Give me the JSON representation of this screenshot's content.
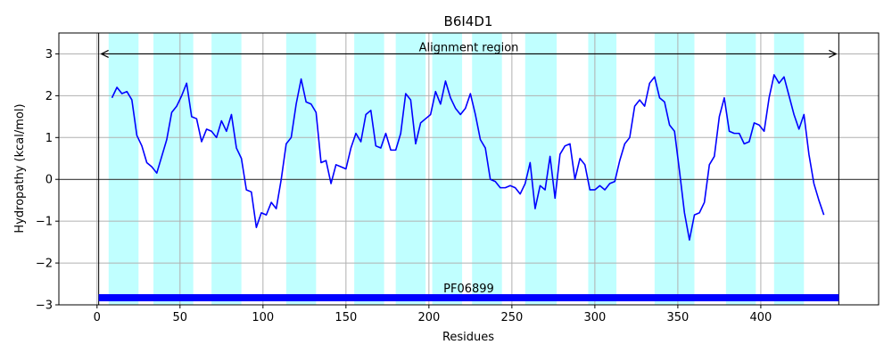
{
  "chart_data": {
    "type": "line",
    "title": "B6I4D1",
    "xlabel": "Residues",
    "ylabel": "Hydropathy (kcal/mol)",
    "xlim": [
      -23,
      471
    ],
    "ylim": [
      -3,
      3.5
    ],
    "xticks": [
      0,
      50,
      100,
      150,
      200,
      250,
      300,
      350,
      400
    ],
    "yticks": [
      -3,
      -2,
      -1,
      0,
      1,
      2,
      3
    ],
    "grid": true,
    "line_color": "#0000ff",
    "band_color": "#c0ffff",
    "domain_color": "#0000ff",
    "alignment_region": {
      "label": "Alignment region",
      "start": 1,
      "end": 447,
      "y": 3
    },
    "domain": {
      "label": "PF06899",
      "start": 1,
      "end": 447
    },
    "hydrophobic_bands": [
      [
        7,
        25
      ],
      [
        34,
        58
      ],
      [
        69,
        87
      ],
      [
        114,
        132
      ],
      [
        155,
        173
      ],
      [
        180,
        198
      ],
      [
        202,
        220
      ],
      [
        226,
        244
      ],
      [
        258,
        277
      ],
      [
        296,
        313
      ],
      [
        336,
        360
      ],
      [
        379,
        397
      ],
      [
        408,
        426
      ]
    ],
    "series": [
      {
        "x": [
          9,
          12,
          15,
          18,
          21,
          24,
          27,
          30,
          33,
          36,
          39,
          42,
          45,
          48,
          51,
          54,
          57,
          60,
          63,
          66,
          69,
          72,
          75,
          78,
          81,
          84,
          87,
          90,
          93,
          96,
          99,
          102,
          105,
          108,
          111,
          114,
          117,
          120,
          123,
          126,
          129,
          132,
          135,
          138,
          141,
          144,
          147,
          150,
          153,
          156,
          159,
          162,
          165,
          168,
          171,
          174,
          177,
          180,
          183,
          186,
          189,
          192,
          195,
          198,
          201,
          204,
          207,
          210,
          213,
          216,
          219,
          222,
          225,
          228,
          231,
          234,
          237,
          240,
          243,
          246,
          249,
          252,
          255,
          258,
          261,
          264,
          267,
          270,
          273,
          276,
          279,
          282,
          285,
          288,
          291,
          294,
          297,
          300,
          303,
          306,
          309,
          312,
          315,
          318,
          321,
          324,
          327,
          330,
          333,
          336,
          339,
          342,
          345,
          348,
          351,
          354,
          357,
          360,
          363,
          366,
          369,
          372,
          375,
          378,
          381,
          384,
          387,
          390,
          393,
          396,
          399,
          402,
          405,
          408,
          411,
          414,
          417,
          420,
          423,
          426,
          429,
          432,
          435,
          438
        ],
        "values": [
          1.95,
          2.2,
          2.05,
          2.1,
          1.9,
          1.05,
          0.8,
          0.4,
          0.3,
          0.15,
          0.55,
          0.95,
          1.6,
          1.75,
          2.0,
          2.3,
          1.5,
          1.45,
          0.9,
          1.2,
          1.15,
          1.0,
          1.4,
          1.15,
          1.55,
          0.75,
          0.5,
          -0.25,
          -0.3,
          -1.15,
          -0.8,
          -0.85,
          -0.55,
          -0.7,
          0.0,
          0.85,
          1.0,
          1.8,
          2.4,
          1.85,
          1.8,
          1.6,
          0.4,
          0.45,
          -0.1,
          0.35,
          0.3,
          0.25,
          0.75,
          1.1,
          0.9,
          1.55,
          1.65,
          0.8,
          0.75,
          1.1,
          0.7,
          0.7,
          1.1,
          2.05,
          1.9,
          0.85,
          1.35,
          1.45,
          1.55,
          2.1,
          1.8,
          2.35,
          1.95,
          1.7,
          1.55,
          1.7,
          2.05,
          1.55,
          0.95,
          0.75,
          0.0,
          -0.05,
          -0.2,
          -0.2,
          -0.15,
          -0.2,
          -0.35,
          -0.1,
          0.4,
          -0.7,
          -0.15,
          -0.25,
          0.55,
          -0.45,
          0.6,
          0.8,
          0.85,
          0.0,
          0.5,
          0.35,
          -0.25,
          -0.25,
          -0.15,
          -0.25,
          -0.1,
          -0.05,
          0.45,
          0.85,
          1.0,
          1.75,
          1.9,
          1.75,
          2.3,
          2.45,
          1.95,
          1.85,
          1.3,
          1.15,
          0.2,
          -0.8,
          -1.45,
          -0.85,
          -0.8,
          -0.55,
          0.35,
          0.55,
          1.5,
          1.95,
          1.15,
          1.1,
          1.1,
          0.85,
          0.9,
          1.35,
          1.3,
          1.15,
          1.95,
          2.5,
          2.3,
          2.45,
          2.0,
          1.55,
          1.2,
          1.55,
          0.6,
          -0.1,
          -0.5,
          -0.85
        ]
      }
    ]
  }
}
